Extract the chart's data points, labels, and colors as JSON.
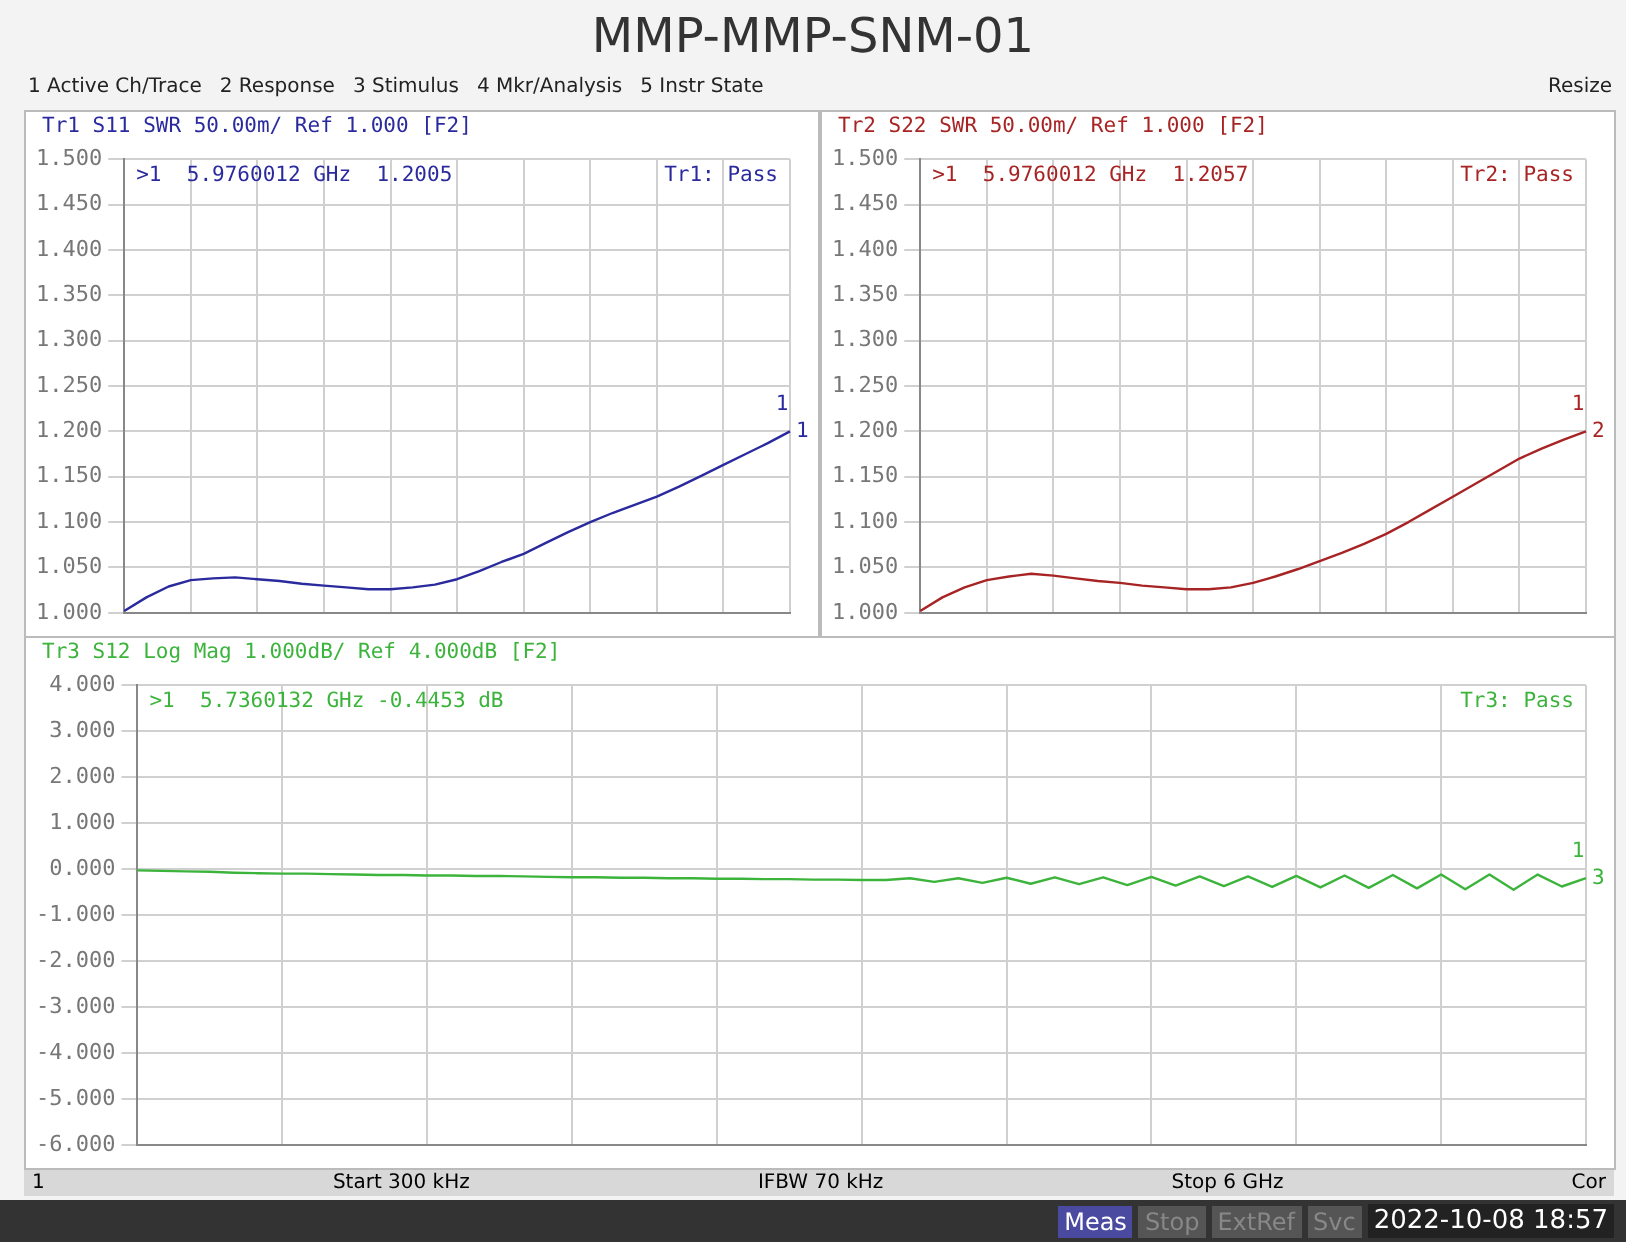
{
  "chart_data": [
    {
      "type": "line",
      "title": "MMP-MMP-SNM-01",
      "subtitle": "Tr1 S11 SWR 50.00m/ Ref 1.000 [F2]",
      "categories": [
        null,
        null,
        null,
        null,
        null,
        null,
        null,
        null,
        null,
        null,
        null,
        null,
        null,
        null,
        null,
        null,
        null,
        null,
        null,
        null,
        null,
        null,
        null,
        null,
        null,
        null,
        null,
        null,
        null,
        null,
        null
      ],
      "series": [
        {
          "color": "#2a2a9e",
          "values": [
            1.002,
            1.017,
            1.029,
            1.036,
            1.038,
            1.039,
            1.037,
            1.035,
            1.032,
            1.03,
            1.028,
            1.026,
            1.026,
            1.028,
            1.031,
            1.037,
            1.046,
            1.056,
            1.065,
            1.077,
            1.089,
            1.1,
            1.11,
            1.119,
            1.128,
            1.139,
            1.151,
            1.163,
            1.175,
            1.187,
            1.2
          ]
        }
      ],
      "ylim": [
        1,
        1.5
      ],
      "yticks": [
        {
          "value": 1,
          "label": "1.000"
        },
        {
          "value": 1.05,
          "label": "1.050"
        },
        {
          "value": 1.1,
          "label": "1.100"
        },
        {
          "value": 1.15,
          "label": "1.150"
        },
        {
          "value": 1.2,
          "label": "1.200"
        },
        {
          "value": 1.25,
          "label": "1.250"
        },
        {
          "value": 1.3,
          "label": "1.300"
        },
        {
          "value": 1.35,
          "label": "1.350"
        },
        {
          "value": 1.4,
          "label": "1.400"
        },
        {
          "value": 1.45,
          "label": "1.450"
        },
        {
          "value": 1.5,
          "label": "1.500"
        }
      ],
      "grid": true,
      "tick_labels": "y",
      "annotations": [
        ">1  5.9760012 GHz  1.2005",
        "Tr1: Pass",
        "1",
        "1",
        "1 Active Ch/Trace",
        "2 Response",
        "3 Stimulus",
        "4 Mkr/Analysis",
        "5 Instr State",
        "Resize"
      ]
    },
    {
      "type": "line",
      "title": "Tr2 S22 SWR 50.00m/ Ref 1.000 [F2]",
      "categories": [
        null,
        null,
        null,
        null,
        null,
        null,
        null,
        null,
        null,
        null,
        null,
        null,
        null,
        null,
        null,
        null,
        null,
        null,
        null,
        null,
        null,
        null,
        null,
        null,
        null,
        null,
        null,
        null,
        null,
        null,
        null
      ],
      "series": [
        {
          "color": "#a82424",
          "values": [
            1.002,
            1.017,
            1.028,
            1.036,
            1.04,
            1.043,
            1.041,
            1.038,
            1.035,
            1.033,
            1.03,
            1.028,
            1.026,
            1.026,
            1.028,
            1.033,
            1.04,
            1.048,
            1.057,
            1.066,
            1.076,
            1.087,
            1.1,
            1.114,
            1.128,
            1.142,
            1.156,
            1.17,
            1.181,
            1.191,
            1.2
          ]
        }
      ],
      "ylim": [
        1,
        1.5
      ],
      "yticks": [
        {
          "value": 1,
          "label": "1.000"
        },
        {
          "value": 1.05,
          "label": "1.050"
        },
        {
          "value": 1.1,
          "label": "1.100"
        },
        {
          "value": 1.15,
          "label": "1.150"
        },
        {
          "value": 1.2,
          "label": "1.200"
        },
        {
          "value": 1.25,
          "label": "1.250"
        },
        {
          "value": 1.3,
          "label": "1.300"
        },
        {
          "value": 1.35,
          "label": "1.350"
        },
        {
          "value": 1.4,
          "label": "1.400"
        },
        {
          "value": 1.45,
          "label": "1.450"
        },
        {
          "value": 1.5,
          "label": "1.500"
        }
      ],
      "grid": true,
      "tick_labels": "y",
      "annotations": [
        ">1  5.9760012 GHz  1.2057",
        "Tr2: Pass",
        "1",
        "2"
      ]
    },
    {
      "type": "line",
      "title": "Tr3 S12 Log Mag 1.000dB/ Ref 4.000dB [F2]",
      "categories": [
        null,
        null,
        null,
        null,
        null,
        null,
        null,
        null,
        null,
        null,
        null,
        null,
        null,
        null,
        null,
        null,
        null,
        null,
        null,
        null,
        null,
        null,
        null,
        null,
        null,
        null,
        null,
        null,
        null,
        null,
        null,
        null,
        null,
        null,
        null,
        null,
        null,
        null,
        null,
        null,
        null,
        null,
        null,
        null,
        null,
        null,
        null,
        null,
        null,
        null,
        null,
        null,
        null,
        null,
        null,
        null,
        null,
        null,
        null,
        null,
        null
      ],
      "series": [
        {
          "color": "#3cb43c",
          "values": [
            -0.03,
            -0.04,
            -0.05,
            -0.06,
            -0.08,
            -0.09,
            -0.1,
            -0.1,
            -0.11,
            -0.12,
            -0.13,
            -0.13,
            -0.14,
            -0.14,
            -0.15,
            -0.15,
            -0.16,
            -0.17,
            -0.18,
            -0.18,
            -0.19,
            -0.19,
            -0.2,
            -0.2,
            -0.21,
            -0.21,
            -0.22,
            -0.22,
            -0.23,
            -0.23,
            -0.24,
            -0.24,
            -0.2,
            -0.28,
            -0.2,
            -0.3,
            -0.19,
            -0.32,
            -0.18,
            -0.33,
            -0.18,
            -0.35,
            -0.17,
            -0.36,
            -0.16,
            -0.37,
            -0.16,
            -0.39,
            -0.15,
            -0.4,
            -0.14,
            -0.41,
            -0.13,
            -0.42,
            -0.12,
            -0.44,
            -0.12,
            -0.45,
            -0.12,
            -0.38,
            -0.2
          ]
        }
      ],
      "ylim": [
        -6,
        4
      ],
      "yticks": [
        {
          "value": -6,
          "label": "-6.000"
        },
        {
          "value": -5,
          "label": "-5.000"
        },
        {
          "value": -4,
          "label": "-4.000"
        },
        {
          "value": -3,
          "label": "-3.000"
        },
        {
          "value": -2,
          "label": "-2.000"
        },
        {
          "value": -1,
          "label": "-1.000"
        },
        {
          "value": 0,
          "label": "0.000"
        },
        {
          "value": 1,
          "label": "1.000"
        },
        {
          "value": 2,
          "label": "2.000"
        },
        {
          "value": 3,
          "label": "3.000"
        },
        {
          "value": 4,
          "label": "4.000"
        }
      ],
      "grid": true,
      "tick_labels": "y",
      "annotations": [
        ">1  5.7360132 GHz -0.4453 dB",
        "Tr3: Pass",
        "1",
        "3",
        "1",
        "Start 300 kHz",
        "IFBW 70 kHz",
        "Stop 6 GHz",
        "Cor",
        "Meas",
        "Stop",
        "ExtRef",
        "Svc",
        "2022-10-08 18:57"
      ]
    }
  ]
}
